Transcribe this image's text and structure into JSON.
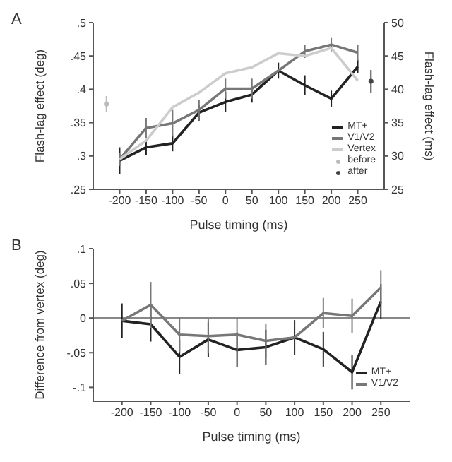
{
  "chart_data": [
    {
      "type": "line",
      "annotations": [
        "A"
      ],
      "xlabel": "Pulse timing (ms)",
      "ylabel": "Flash-lag effect (deg)",
      "y2label": "Flash-lag effect (ms)",
      "x": [
        -200,
        -150,
        -100,
        -50,
        0,
        50,
        100,
        150,
        200,
        250
      ],
      "xlim": [
        -250,
        300
      ],
      "xticks": [
        -200,
        -150,
        -100,
        -50,
        0,
        50,
        100,
        150,
        200,
        250
      ],
      "ylim": [
        0.25,
        0.5
      ],
      "yticks": [
        {
          "value": 0.25,
          "label": ".25"
        },
        {
          "value": 0.3,
          "label": ".3"
        },
        {
          "value": 0.35,
          "label": ".35"
        },
        {
          "value": 0.4,
          "label": ".4"
        },
        {
          "value": 0.45,
          "label": ".45"
        },
        {
          "value": 0.5,
          "label": ".5"
        }
      ],
      "y2lim": [
        25,
        50
      ],
      "y2ticks": [
        25,
        30,
        35,
        40,
        45,
        50
      ],
      "legend": "bottom right",
      "marker": "none",
      "grid": false,
      "series": [
        {
          "name": "MT+",
          "color": "#222222",
          "values": [
            0.293,
            0.313,
            0.319,
            0.365,
            0.381,
            0.392,
            0.428,
            0.406,
            0.386,
            0.434
          ],
          "errors": [
            0.02,
            0.012,
            0.012,
            0.012,
            0.015,
            0.012,
            0.012,
            0.015,
            0.012,
            0.01
          ]
        },
        {
          "name": "V1/V2",
          "color": "#777777",
          "values": [
            0.295,
            0.342,
            0.349,
            0.369,
            0.401,
            0.401,
            0.428,
            0.457,
            0.467,
            0.455
          ],
          "errors": [
            0.01,
            0.015,
            0.02,
            0.015,
            0.015,
            0.015,
            null,
            0.01,
            0.01,
            0.012
          ]
        },
        {
          "name": "Vertex",
          "color": "#cccccc",
          "values": [
            0.295,
            0.323,
            0.373,
            0.395,
            0.424,
            0.433,
            0.454,
            0.45,
            0.462,
            0.413
          ]
        },
        {
          "name": "before",
          "type": "scatter",
          "color": "#bbbbbb",
          "x": [
            -225
          ],
          "values": [
            0.378
          ],
          "errors": [
            0.012
          ],
          "marker": "circle"
        },
        {
          "name": "after",
          "type": "scatter",
          "color": "#444444",
          "x": [
            275
          ],
          "values": [
            0.412
          ],
          "errors": [
            0.017
          ],
          "marker": "circle"
        }
      ]
    },
    {
      "type": "line",
      "annotations": [
        "B"
      ],
      "xlabel": "Pulse timing (ms)",
      "ylabel": "Difference from vertex (deg)",
      "x": [
        -200,
        -150,
        -100,
        -50,
        0,
        50,
        100,
        150,
        200,
        250
      ],
      "xlim": [
        -250,
        300
      ],
      "xticks": [
        -200,
        -150,
        -100,
        -50,
        0,
        50,
        100,
        150,
        200,
        250
      ],
      "ylim": [
        -0.12,
        0.1
      ],
      "yticks": [
        {
          "value": -0.1,
          "label": "-.1"
        },
        {
          "value": -0.05,
          "label": "-.05"
        },
        {
          "value": 0,
          "label": "0"
        },
        {
          "value": 0.05,
          "label": ".05"
        },
        {
          "value": 0.1,
          "label": ".1"
        }
      ],
      "legend": "bottom right",
      "marker": "none",
      "grid": false,
      "ref_lines": [
        {
          "axis": "y",
          "value": 0,
          "color": "#888888"
        }
      ],
      "series": [
        {
          "name": "MT+",
          "color": "#222222",
          "values": [
            -0.004,
            -0.009,
            -0.056,
            -0.031,
            -0.046,
            -0.042,
            -0.028,
            -0.045,
            -0.078,
            0.024
          ],
          "errors": [
            0.025,
            0.025,
            0.025,
            0.025,
            0.025,
            0.025,
            0.025,
            0.025,
            0.025,
            0.025
          ]
        },
        {
          "name": "V1/V2",
          "color": "#777777",
          "values": [
            -0.004,
            0.019,
            -0.024,
            -0.026,
            -0.024,
            -0.033,
            -0.028,
            0.007,
            0.003,
            0.044
          ],
          "errors": [
            null,
            0.033,
            0.025,
            0.025,
            0.025,
            0.025,
            null,
            0.022,
            0.025,
            0.025
          ]
        }
      ]
    }
  ]
}
